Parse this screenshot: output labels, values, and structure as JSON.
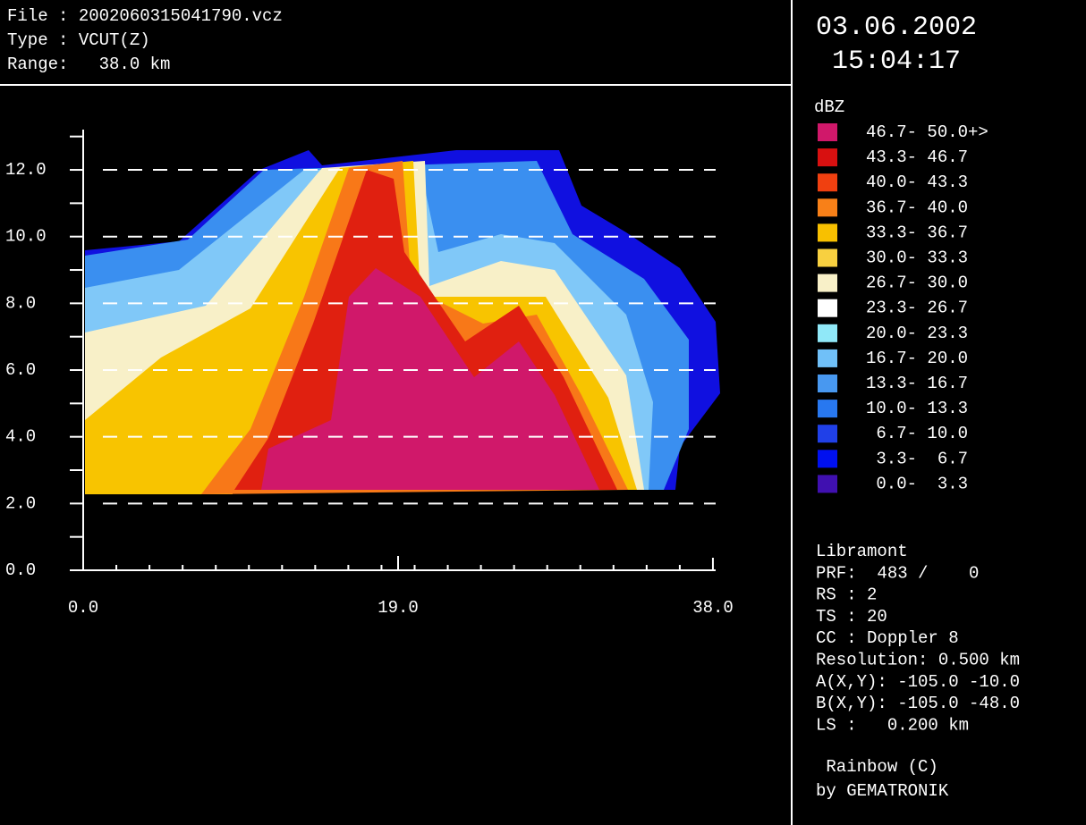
{
  "header": {
    "lines": [
      "File : 2002060315041790.vcz",
      "Type : VCUT(Z)",
      "Range:   38.0 km"
    ]
  },
  "datetime": {
    "date": "03.06.2002",
    "time": "15:04:17"
  },
  "plot": {
    "yticks": [
      "0.0",
      "2.0",
      "4.0",
      "6.0",
      "8.0",
      "10.0",
      "12.0"
    ],
    "xticks": [
      "0.0",
      "19.0",
      "38.0"
    ]
  },
  "legend": {
    "unit": "dBZ",
    "items": [
      {
        "range": "46.7- 50.0+>",
        "color": "#d0186a"
      },
      {
        "range": "43.3- 46.7",
        "color": "#d81010"
      },
      {
        "range": "40.0- 43.3",
        "color": "#f04010"
      },
      {
        "range": "36.7- 40.0",
        "color": "#f88018"
      },
      {
        "range": "33.3- 36.7",
        "color": "#f8c000"
      },
      {
        "range": "30.0- 33.3",
        "color": "#f8d040"
      },
      {
        "range": "26.7- 30.0",
        "color": "#f8f0c8"
      },
      {
        "range": "23.3- 26.7",
        "color": "#ffffff"
      },
      {
        "range": "20.0- 23.3",
        "color": "#90e8f8"
      },
      {
        "range": "16.7- 20.0",
        "color": "#70c0f8"
      },
      {
        "range": "13.3- 16.7",
        "color": "#4898f0"
      },
      {
        "range": "10.0- 13.3",
        "color": "#2878f0"
      },
      {
        "range": " 6.7- 10.0",
        "color": "#2040e8"
      },
      {
        "range": " 3.3-  6.7",
        "color": "#0010f0"
      },
      {
        "range": " 0.0-  3.3",
        "color": "#4010b0"
      }
    ]
  },
  "info": {
    "lines": [
      "Libramont",
      "PRF:  483 /    0",
      "RS : 2",
      "TS : 20",
      "CC : Doppler 8",
      "Resolution: 0.500 km",
      "A(X,Y): -105.0 -10.0",
      "B(X,Y): -105.0 -48.0",
      "LS :   0.200 km"
    ]
  },
  "footer": {
    "lines": [
      " Rainbow (C)",
      "by GEMATRONIK"
    ]
  }
}
